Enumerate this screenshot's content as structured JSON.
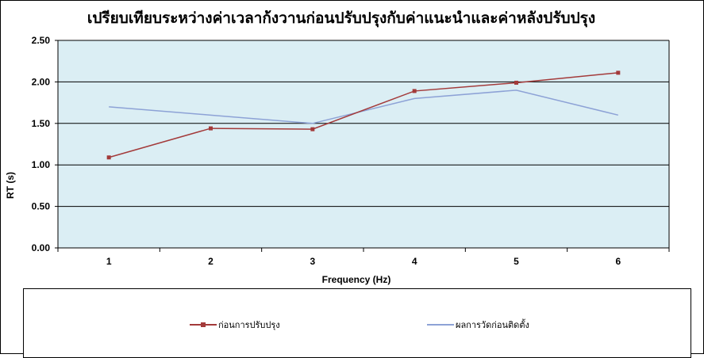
{
  "chart_data": {
    "type": "line",
    "title": "เปรียบเทียบระหว่างค่าเวลาก้งวานก่อนปรับปรุงกับค่าแนะนำและค่าหลังปรับปรุง",
    "xlabel": "Frequency (Hz)",
    "ylabel": "RT (s)",
    "categories": [
      "1",
      "2",
      "3",
      "4",
      "5",
      "6"
    ],
    "ylim": [
      0,
      2.5
    ],
    "yticks": [
      "0.00",
      "0.50",
      "1.00",
      "1.50",
      "2.00",
      "2.50"
    ],
    "grid": true,
    "legend_position": "bottom",
    "plot_background": "#dbeef4",
    "series": [
      {
        "name": "ก่อนการปรับปรุง",
        "color": "#a33a3a",
        "marker": "square",
        "values": [
          1.09,
          1.44,
          1.43,
          1.89,
          1.99,
          2.11
        ]
      },
      {
        "name": "ผลการวัดก่อนติดตั้ง",
        "color": "#8da2d6",
        "marker": "none",
        "values": [
          1.7,
          1.6,
          1.5,
          1.8,
          1.9,
          1.6
        ]
      }
    ]
  }
}
